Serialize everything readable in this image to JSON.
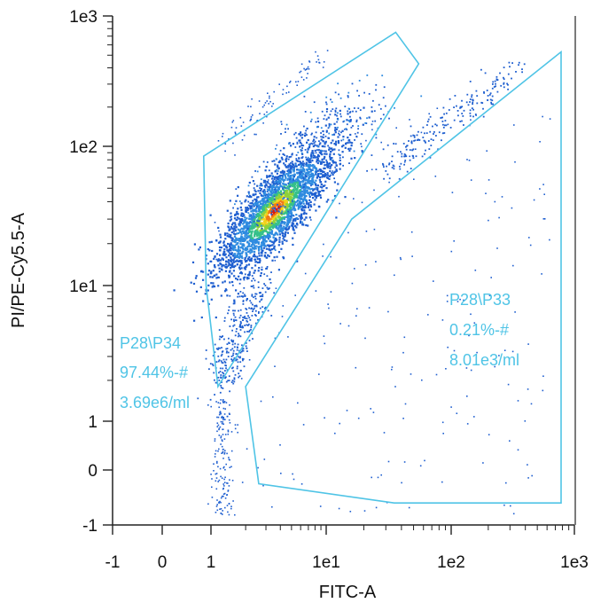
{
  "chart_data": {
    "type": "scatter",
    "title": "",
    "xlabel": "FITC-A",
    "ylabel": "PI/PE-Cy5.5-A",
    "x_scale": "biexponential",
    "y_scale": "biexponential",
    "xlim": [
      -1,
      1000
    ],
    "ylim": [
      -1,
      1000
    ],
    "x_ticks": [
      {
        "value": -1,
        "label": "-1"
      },
      {
        "value": 0,
        "label": "0"
      },
      {
        "value": 1,
        "label": "1"
      },
      {
        "value": 10,
        "label": "1e1"
      },
      {
        "value": 100,
        "label": "1e2"
      },
      {
        "value": 1000,
        "label": "1e3"
      }
    ],
    "y_ticks": [
      {
        "value": -1,
        "label": "-1"
      },
      {
        "value": 0,
        "label": "0"
      },
      {
        "value": 1,
        "label": "1"
      },
      {
        "value": 10,
        "label": "1e1"
      },
      {
        "value": 100,
        "label": "1e2"
      },
      {
        "value": 1000,
        "label": "1e3"
      }
    ],
    "grid": false,
    "gate_color": "#4fc4e6",
    "density_colors": [
      "#1f5fd0",
      "#2e8be0",
      "#35c08a",
      "#8fd13a",
      "#f2d21a",
      "#f07a16",
      "#d81b10"
    ],
    "populations": [
      {
        "name": "P34",
        "core_x": 3.5,
        "core_y": 35,
        "events": "dense"
      },
      {
        "name": "P33",
        "core_x": 120,
        "core_y": 110,
        "events": "sparse"
      }
    ],
    "gates": [
      {
        "name": "P28\\P34",
        "percent": "97.44%-#",
        "concentration": "3.69e6/ml",
        "label_lines": [
          "P28\\P34",
          "97.44%-#",
          "3.69e6/ml"
        ],
        "vertices": [
          [
            0.85,
            85
          ],
          [
            36,
            750
          ],
          [
            55,
            430
          ],
          [
            1.15,
            1.8
          ],
          [
            0.9,
            10
          ]
        ]
      },
      {
        "name": "P28\\P33",
        "percent": "0.21%-#",
        "concentration": "8.01e3/ml",
        "label_lines": [
          "P28\\P33",
          "0.21%-#",
          "8.01e3/ml"
        ],
        "vertices": [
          [
            2.0,
            1.8
          ],
          [
            16,
            30
          ],
          [
            780,
            530
          ],
          [
            780,
            -0.6
          ],
          [
            35,
            -0.6
          ],
          [
            2.6,
            -0.25
          ]
        ]
      }
    ]
  }
}
